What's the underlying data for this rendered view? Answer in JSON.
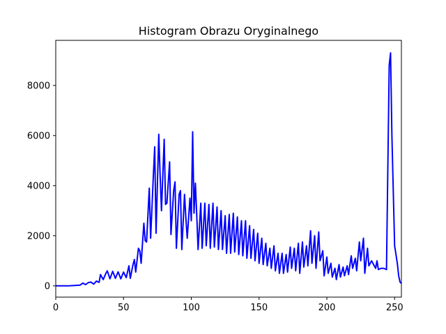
{
  "chart_data": {
    "type": "line",
    "title": "Histogram Obrazu Oryginalnego",
    "xlabel": "",
    "ylabel": "",
    "xlim": [
      0,
      255
    ],
    "ylim": [
      -450,
      9800
    ],
    "x_ticks": [
      0,
      50,
      100,
      150,
      200,
      250
    ],
    "y_ticks": [
      0,
      2000,
      4000,
      6000,
      8000
    ],
    "grid": false,
    "legend": "none",
    "line_color": "#0000ff",
    "series": [
      {
        "points": [
          [
            0,
            0
          ],
          [
            10,
            0
          ],
          [
            12,
            10
          ],
          [
            15,
            20
          ],
          [
            18,
            30
          ],
          [
            20,
            110
          ],
          [
            22,
            50
          ],
          [
            24,
            130
          ],
          [
            26,
            150
          ],
          [
            28,
            70
          ],
          [
            30,
            190
          ],
          [
            32,
            140
          ],
          [
            33,
            450
          ],
          [
            35,
            250
          ],
          [
            37,
            500
          ],
          [
            38,
            600
          ],
          [
            40,
            280
          ],
          [
            42,
            580
          ],
          [
            44,
            300
          ],
          [
            46,
            560
          ],
          [
            48,
            280
          ],
          [
            50,
            550
          ],
          [
            52,
            330
          ],
          [
            54,
            800
          ],
          [
            55,
            300
          ],
          [
            57,
            850
          ],
          [
            58,
            1050
          ],
          [
            59,
            550
          ],
          [
            61,
            1500
          ],
          [
            62,
            1400
          ],
          [
            63,
            900
          ],
          [
            65,
            2500
          ],
          [
            66,
            1800
          ],
          [
            67,
            1750
          ],
          [
            69,
            3900
          ],
          [
            70,
            1900
          ],
          [
            72,
            4400
          ],
          [
            73,
            5550
          ],
          [
            74,
            2100
          ],
          [
            76,
            6050
          ],
          [
            77,
            4400
          ],
          [
            78,
            3000
          ],
          [
            80,
            5850
          ],
          [
            81,
            3250
          ],
          [
            82,
            3300
          ],
          [
            84,
            4950
          ],
          [
            85,
            2050
          ],
          [
            87,
            3800
          ],
          [
            88,
            4150
          ],
          [
            89,
            1500
          ],
          [
            91,
            3650
          ],
          [
            92,
            3800
          ],
          [
            93,
            1450
          ],
          [
            95,
            3650
          ],
          [
            96,
            2700
          ],
          [
            97,
            1900
          ],
          [
            99,
            3500
          ],
          [
            100,
            2600
          ],
          [
            101,
            6150
          ],
          [
            102,
            2900
          ],
          [
            103,
            4100
          ],
          [
            104,
            2850
          ],
          [
            105,
            1450
          ],
          [
            107,
            3300
          ],
          [
            108,
            1500
          ],
          [
            110,
            3300
          ],
          [
            111,
            1600
          ],
          [
            113,
            3250
          ],
          [
            114,
            1500
          ],
          [
            116,
            3300
          ],
          [
            117,
            1550
          ],
          [
            119,
            3150
          ],
          [
            120,
            1450
          ],
          [
            122,
            3000
          ],
          [
            123,
            1450
          ],
          [
            125,
            2800
          ],
          [
            126,
            1300
          ],
          [
            128,
            2850
          ],
          [
            129,
            1300
          ],
          [
            131,
            2900
          ],
          [
            132,
            1350
          ],
          [
            134,
            2750
          ],
          [
            135,
            1250
          ],
          [
            137,
            2600
          ],
          [
            138,
            1200
          ],
          [
            140,
            2600
          ],
          [
            141,
            1100
          ],
          [
            143,
            2400
          ],
          [
            144,
            1100
          ],
          [
            146,
            2250
          ],
          [
            147,
            1000
          ],
          [
            149,
            2100
          ],
          [
            150,
            900
          ],
          [
            152,
            1900
          ],
          [
            153,
            850
          ],
          [
            155,
            1700
          ],
          [
            156,
            800
          ],
          [
            158,
            1500
          ],
          [
            159,
            700
          ],
          [
            161,
            1600
          ],
          [
            162,
            600
          ],
          [
            164,
            1300
          ],
          [
            165,
            500
          ],
          [
            167,
            1300
          ],
          [
            168,
            500
          ],
          [
            170,
            1250
          ],
          [
            171,
            550
          ],
          [
            173,
            1550
          ],
          [
            174,
            700
          ],
          [
            176,
            1500
          ],
          [
            177,
            600
          ],
          [
            179,
            1700
          ],
          [
            180,
            500
          ],
          [
            182,
            1750
          ],
          [
            183,
            750
          ],
          [
            185,
            1600
          ],
          [
            186,
            800
          ],
          [
            188,
            2200
          ],
          [
            189,
            900
          ],
          [
            191,
            2000
          ],
          [
            192,
            700
          ],
          [
            194,
            2150
          ],
          [
            195,
            1000
          ],
          [
            197,
            1400
          ],
          [
            198,
            400
          ],
          [
            200,
            1150
          ],
          [
            201,
            500
          ],
          [
            203,
            900
          ],
          [
            204,
            350
          ],
          [
            206,
            700
          ],
          [
            207,
            250
          ],
          [
            209,
            850
          ],
          [
            210,
            350
          ],
          [
            212,
            750
          ],
          [
            213,
            400
          ],
          [
            215,
            800
          ],
          [
            216,
            450
          ],
          [
            218,
            1200
          ],
          [
            219,
            700
          ],
          [
            221,
            1100
          ],
          [
            222,
            600
          ],
          [
            224,
            1750
          ],
          [
            225,
            1000
          ],
          [
            227,
            1900
          ],
          [
            228,
            500
          ],
          [
            230,
            1500
          ],
          [
            231,
            800
          ],
          [
            233,
            1000
          ],
          [
            234,
            900
          ],
          [
            236,
            700
          ],
          [
            237,
            1000
          ],
          [
            238,
            650
          ],
          [
            240,
            700
          ],
          [
            242,
            700
          ],
          [
            244,
            650
          ],
          [
            246,
            8800
          ],
          [
            247,
            9300
          ],
          [
            248,
            6000
          ],
          [
            250,
            1600
          ],
          [
            252,
            900
          ],
          [
            253,
            400
          ],
          [
            254,
            150
          ],
          [
            255,
            100
          ]
        ]
      }
    ]
  }
}
